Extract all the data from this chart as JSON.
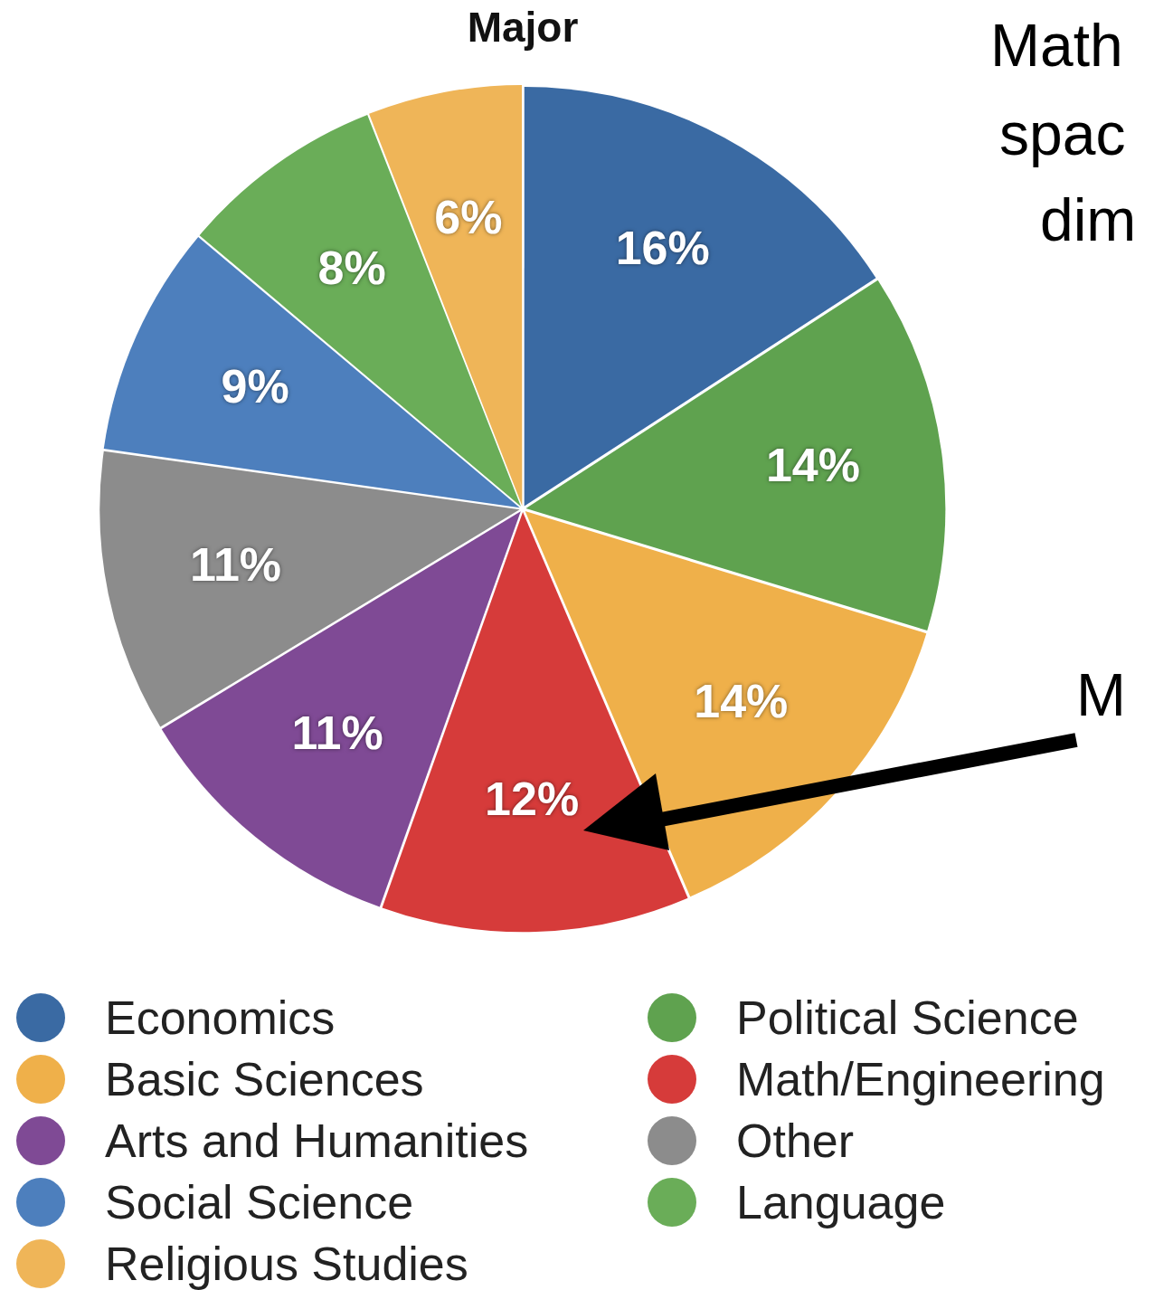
{
  "chart_data": {
    "type": "pie",
    "title": "Major",
    "categories": [
      "Economics",
      "Political Science",
      "Basic Sciences",
      "Math/Engineering",
      "Arts and Humanities",
      "Other",
      "Social Science",
      "Language",
      "Religious Studies"
    ],
    "values": [
      16,
      14,
      14,
      12,
      11,
      11,
      9,
      8,
      6
    ],
    "value_labels": [
      "16%",
      "14%",
      "14%",
      "12%",
      "11%",
      "11%",
      "9%",
      "8%",
      "6%"
    ],
    "colors": [
      "#3a6aa3",
      "#5fa24f",
      "#efb04a",
      "#d63b3a",
      "#7f4a95",
      "#8c8c8c",
      "#4d7fbd",
      "#6aad58",
      "#efb558"
    ],
    "legend": "bottom",
    "annotations": [
      "Math",
      "spac",
      "dim",
      "M"
    ]
  }
}
